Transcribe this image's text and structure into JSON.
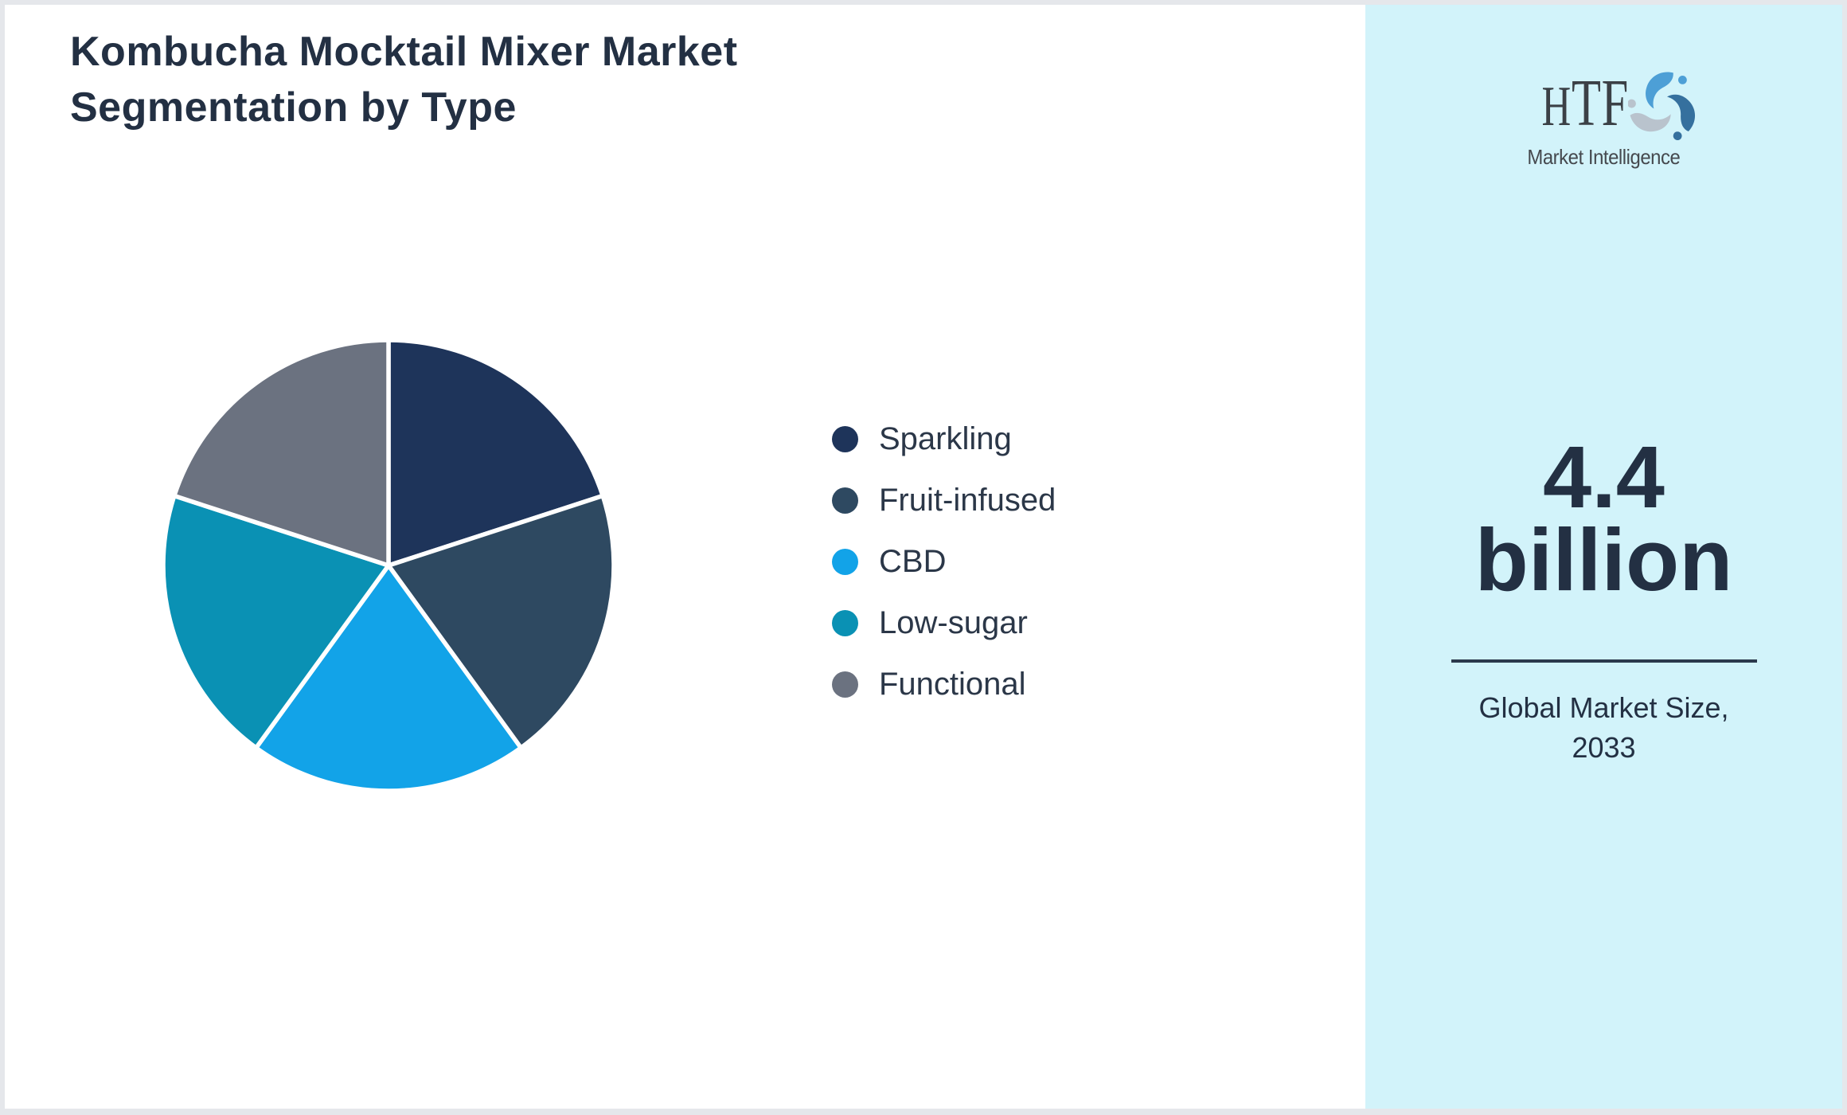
{
  "page": {
    "background": "#FFFFFF",
    "frame_color": "#E5E7EB"
  },
  "header": {
    "title": "Kombucha Mocktail Mixer Market Segmentation by Type"
  },
  "chart_data": {
    "type": "pie",
    "title": "Kombucha Mocktail Mixer Market Segmentation by Type",
    "categories": [
      "Sparkling",
      "Fruit-infused",
      "CBD",
      "Low-sugar",
      "Functional"
    ],
    "values": [
      20,
      20,
      20,
      20,
      20
    ],
    "values_note": "no numeric labels shown; all five slices are visually equal (~72° / ~20% each)",
    "colors": [
      "#1E345A",
      "#2E4961",
      "#12A3E8",
      "#0A91B4",
      "#6B7280"
    ],
    "start_angle_deg": 0,
    "direction": "clockwise",
    "slice_border_color": "#FFFFFF",
    "legend_position": "right-of-chart",
    "data_labels": false
  },
  "side_panel": {
    "background": "#D2F3FA",
    "logo": {
      "name": "HTF Market Intelligence",
      "text": "HTF",
      "subtext": "Market Intelligence",
      "swirl_colors": [
        "#4D9FD6",
        "#35709E",
        "#B9C3CD"
      ]
    },
    "market_size_value_line1": "4.4",
    "market_size_value_line2": "billion",
    "caption_line1": "Global Market Size,",
    "caption_line2": "2033",
    "text_color": "#233043",
    "divider_color": "#2B394C"
  }
}
